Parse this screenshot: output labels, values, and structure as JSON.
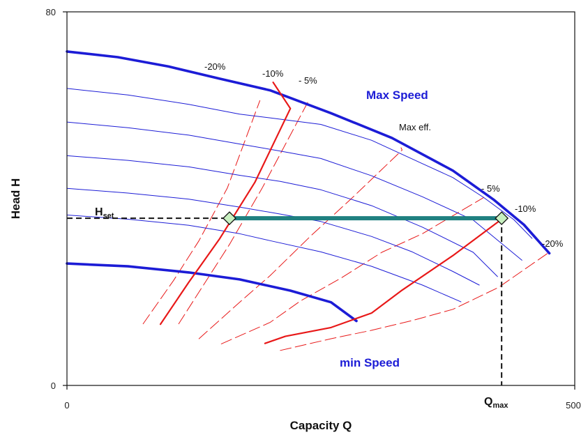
{
  "chart_data": {
    "type": "line",
    "xlabel": "Capacity Q",
    "ylabel": "Head H",
    "xlim": [
      0,
      500
    ],
    "ylim": [
      0,
      80
    ],
    "x_ticks": [
      "0",
      "500"
    ],
    "y_ticks": [
      "0",
      "80"
    ],
    "grid": false,
    "colors": {
      "speed_curves": "#1c1cd6",
      "efficiency_main": "#e81818",
      "efficiency_dashed": "#e81818",
      "operating_line": "#1f8080",
      "marker_fill": "#c8f0c0"
    },
    "labels": {
      "max_speed": "Max Speed",
      "min_speed": "min Speed",
      "max_eff": "Max eff.",
      "h_set": "H",
      "h_set_sub": "set",
      "q_max": "Q",
      "q_max_sub": "max"
    },
    "operating_point": {
      "h_set": 35.8,
      "q_start": 160,
      "q_max": 428
    },
    "speed_curves": [
      {
        "name": "Max Speed",
        "bold": true,
        "points": [
          [
            0,
            71.5
          ],
          [
            50,
            70.3
          ],
          [
            100,
            68.3
          ],
          [
            150,
            65.7
          ],
          [
            200,
            63.2
          ],
          [
            260,
            58.3
          ],
          [
            320,
            53
          ],
          [
            380,
            46
          ],
          [
            420,
            39.8
          ],
          [
            450,
            34.4
          ],
          [
            475,
            28.3
          ]
        ]
      },
      {
        "bold": false,
        "points": [
          [
            0,
            63.6
          ],
          [
            60,
            62.2
          ],
          [
            120,
            60.2
          ],
          [
            170,
            58.1
          ],
          [
            200,
            57.3
          ],
          [
            250,
            55.9
          ],
          [
            300,
            52.5
          ],
          [
            350,
            47.5
          ],
          [
            380,
            44.5
          ],
          [
            410,
            40.3
          ],
          [
            440,
            35.5
          ],
          [
            458,
            31.5
          ]
        ]
      },
      {
        "bold": false,
        "points": [
          [
            0,
            56.4
          ],
          [
            60,
            55.2
          ],
          [
            120,
            53.6
          ],
          [
            170,
            51.7
          ],
          [
            210,
            50.2
          ],
          [
            250,
            48.6
          ],
          [
            300,
            44.9
          ],
          [
            350,
            40.4
          ],
          [
            400,
            35.4
          ],
          [
            448,
            26.8
          ]
        ]
      },
      {
        "bold": false,
        "points": [
          [
            0,
            49.2
          ],
          [
            60,
            48.2
          ],
          [
            120,
            46.8
          ],
          [
            170,
            45
          ],
          [
            210,
            43.7
          ],
          [
            250,
            41.9
          ],
          [
            300,
            38.5
          ],
          [
            350,
            33.9
          ],
          [
            400,
            28.5
          ],
          [
            424,
            23.3
          ]
        ]
      },
      {
        "bold": false,
        "points": [
          [
            0,
            42.2
          ],
          [
            60,
            41.2
          ],
          [
            120,
            39.9
          ],
          [
            170,
            38.2
          ],
          [
            210,
            36.7
          ],
          [
            250,
            35.1
          ],
          [
            300,
            31.9
          ],
          [
            340,
            28.6
          ],
          [
            380,
            24.4
          ],
          [
            406,
            21.5
          ]
        ]
      },
      {
        "bold": false,
        "points": [
          [
            0,
            36.5
          ],
          [
            60,
            35.6
          ],
          [
            120,
            34.3
          ],
          [
            170,
            32.5
          ],
          [
            200,
            31
          ],
          [
            250,
            28.6
          ],
          [
            300,
            25.5
          ],
          [
            350,
            21.5
          ],
          [
            388,
            17.9
          ]
        ]
      },
      {
        "name": "min Speed",
        "bold": true,
        "points": [
          [
            0,
            26.1
          ],
          [
            60,
            25.5
          ],
          [
            120,
            24.2
          ],
          [
            170,
            22.7
          ],
          [
            220,
            20.3
          ],
          [
            260,
            17.8
          ],
          [
            285,
            13.8
          ]
        ]
      }
    ],
    "efficiency_main": [
      {
        "label": "-10%",
        "points": [
          [
            92,
            13.1
          ],
          [
            120,
            22.1
          ],
          [
            150,
            31.3
          ],
          [
            185,
            43.5
          ],
          [
            220,
            59.3
          ],
          [
            203,
            64.9
          ]
        ]
      },
      {
        "label": "-10%",
        "points": [
          [
            428,
            35.6
          ],
          [
            380,
            27.8
          ],
          [
            330,
            20.4
          ],
          [
            300,
            15.5
          ],
          [
            260,
            12.4
          ],
          [
            215,
            10.5
          ],
          [
            195,
            9
          ]
        ]
      }
    ],
    "efficiency_dashed": [
      {
        "label": "-20%",
        "points": [
          [
            75,
            13.2
          ],
          [
            105,
            22.5
          ],
          [
            130,
            31
          ],
          [
            158,
            42.3
          ],
          [
            190,
            61
          ]
        ]
      },
      {
        "label": "- 5%",
        "points": [
          [
            110,
            13.2
          ],
          [
            135,
            21.7
          ],
          [
            160,
            30.2
          ],
          [
            192,
            42.2
          ],
          [
            237,
            60.6
          ]
        ]
      },
      {
        "label": "",
        "points": [
          [
            130,
            10
          ],
          [
            170,
            17.8
          ],
          [
            200,
            23.5
          ],
          [
            240,
            32
          ],
          [
            280,
            40
          ],
          [
            330,
            50.4
          ],
          [
            329,
            50.9
          ]
        ]
      },
      {
        "label": "- 5%",
        "points": [
          [
            152,
            8.9
          ],
          [
            200,
            13.5
          ],
          [
            230,
            18.1
          ],
          [
            270,
            23
          ],
          [
            310,
            28.5
          ],
          [
            350,
            32.5
          ],
          [
            410,
            40.2
          ]
        ]
      },
      {
        "label": "-20%",
        "points": [
          [
            210,
            7.5
          ],
          [
            260,
            10
          ],
          [
            300,
            11.8
          ],
          [
            340,
            13.9
          ],
          [
            380,
            16.3
          ],
          [
            425,
            21
          ],
          [
            476,
            28.7
          ]
        ]
      }
    ],
    "annotations": {
      "max_speed_pcts": [
        "-20%",
        "-10%",
        "- 5%"
      ],
      "right_pcts": [
        "- 5%",
        "-10%",
        "-20%"
      ]
    }
  }
}
